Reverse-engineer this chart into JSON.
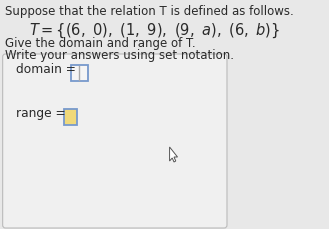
{
  "title_line1": "Suppose that the relation T is defined as follows.",
  "instruction1": "Give the domain and range of T.",
  "instruction2": "Write your answers using set notation.",
  "domain_label": "domain =",
  "range_label": "range =",
  "bg_color": "#e8e8e8",
  "box_bg": "#ebebeb",
  "box_border": "#bbbbbb",
  "domain_box_fill": "#f5f5f5",
  "domain_box_border": "#7799cc",
  "domain_divider": "#aaaaaa",
  "range_box_fill": "#f0d97a",
  "range_box_border": "#7799cc",
  "text_color": "#2a2a2a",
  "font_size_title": 8.5,
  "font_size_relation": 10.5,
  "font_size_body": 8.5,
  "font_size_label": 8.8,
  "cursor_color": "#555555"
}
